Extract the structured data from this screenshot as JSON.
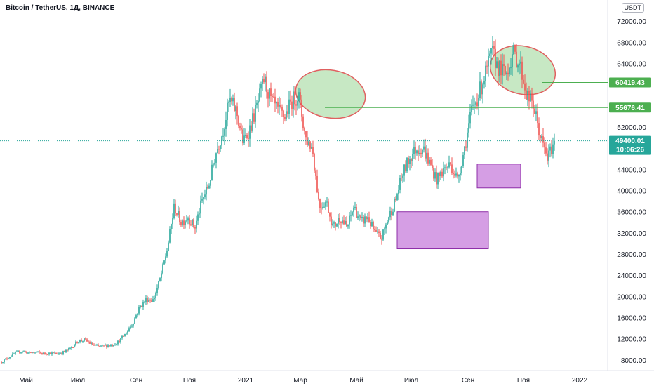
{
  "title": "Bitcoin / TetherUS, 1Д, BINANCE",
  "currency": "USDT",
  "colors": {
    "up": "#26a69a",
    "down": "#ef5350",
    "level": "#4caf50",
    "box": "#c77ddb",
    "boxBorder": "#8e2fa8",
    "ellipseFill": "#b9e2b5",
    "ellipseStroke": "#e06060"
  },
  "chart_data": {
    "type": "candlestick",
    "y_ticks": [
      8000,
      12000,
      16000,
      20000,
      24000,
      28000,
      32000,
      36000,
      40000,
      44000,
      48000,
      52000,
      56000,
      60000,
      64000,
      68000,
      72000
    ],
    "y_tick_labels": [
      "8000.00",
      "12000.00",
      "16000.00",
      "20000.00",
      "24000.00",
      "28000.00",
      "32000.00",
      "36000.00",
      "40000.00",
      "44000.00",
      "48000.00",
      "52000.00",
      "56000.00",
      "60000.00",
      "64000.00",
      "68000.00",
      "72000.00"
    ],
    "x_labels": [
      "Май",
      "Июл",
      "Сен",
      "Ноя",
      "2021",
      "Мар",
      "Май",
      "Июл",
      "Сен",
      "Ноя",
      "2022"
    ],
    "ylim": [
      6000,
      76000
    ],
    "levels": [
      {
        "value": 60419.43,
        "label": "60419.43"
      },
      {
        "value": 55676.41,
        "label": "55676.41"
      }
    ],
    "current_price": {
      "value": 49400.01,
      "label": "49400.01",
      "countdown": "10:06:26"
    },
    "price_path": [
      7600,
      8500,
      9300,
      9700,
      9300,
      9500,
      9200,
      9300,
      9200,
      9500,
      10200,
      11500,
      11800,
      11000,
      10500,
      10700,
      10800,
      11500,
      13000,
      15000,
      18000,
      19500,
      19300,
      23500,
      29000,
      37000,
      34000,
      35000,
      33000,
      38000,
      41000,
      47000,
      51000,
      57000,
      55000,
      49000,
      52000,
      56000,
      61000,
      57000,
      55000,
      54000,
      57000,
      58000,
      50000,
      48000,
      37000,
      38000,
      33000,
      35000,
      33000,
      37000,
      34000,
      35000,
      32000,
      31000,
      35000,
      38000,
      43000,
      46000,
      48000,
      48000,
      45000,
      42000,
      44000,
      45000,
      42000,
      48000,
      55000,
      58000,
      62000,
      66000,
      63000,
      62000,
      66000,
      64000,
      58000,
      56000,
      50000,
      46000,
      49400
    ]
  },
  "boxes": [
    {
      "name": "box-mid-2021",
      "y_from": 29000,
      "y_to": 36000
    },
    {
      "name": "box-sep-2021",
      "y_from": 40500,
      "y_to": 45000
    }
  ],
  "ellipses": [
    {
      "name": "top-ellipse-1"
    },
    {
      "name": "top-ellipse-2"
    }
  ]
}
